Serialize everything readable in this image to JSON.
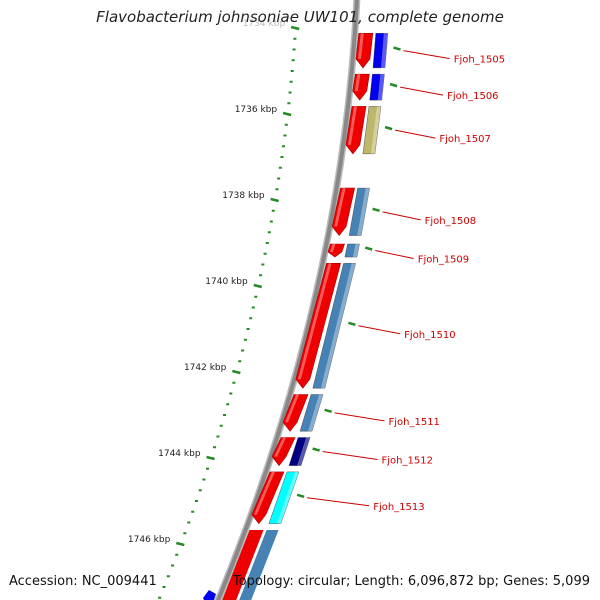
{
  "title": "Flavobacterium johnsoniae UW101, complete genome",
  "accession": "Accession: NC_009441",
  "topology": "Topology: circular; Length: 6,096,872 bp; Genes: 5,099",
  "ticks": [
    {
      "label": "1734 kbp",
      "kbp": 1734
    },
    {
      "label": "1736 kbp",
      "kbp": 1736
    },
    {
      "label": "1738 kbp",
      "kbp": 1738
    },
    {
      "label": "1740 kbp",
      "kbp": 1740
    },
    {
      "label": "1742 kbp",
      "kbp": 1742
    },
    {
      "label": "1744 kbp",
      "kbp": 1744
    },
    {
      "label": "1746 kbp",
      "kbp": 1746
    }
  ],
  "genes": [
    {
      "label": "Fjoh_1505",
      "start_kbp": 1734.1,
      "end_kbp": 1734.95,
      "color": "#0000ee"
    },
    {
      "label": "Fjoh_1506",
      "start_kbp": 1735.05,
      "end_kbp": 1735.7,
      "color": "#0000ee"
    },
    {
      "label": "Fjoh_1507",
      "start_kbp": 1735.8,
      "end_kbp": 1736.95,
      "color": "#bdb76b"
    },
    {
      "label": "Fjoh_1508",
      "start_kbp": 1737.7,
      "end_kbp": 1738.85,
      "color": "#4682b4"
    },
    {
      "label": "Fjoh_1509",
      "start_kbp": 1739.0,
      "end_kbp": 1739.35,
      "color": "#4682b4"
    },
    {
      "label": "Fjoh_1510",
      "start_kbp": 1739.45,
      "end_kbp": 1742.4,
      "color": "#4682b4"
    },
    {
      "label": "Fjoh_1511",
      "start_kbp": 1742.5,
      "end_kbp": 1743.4,
      "color": "#4682b4"
    },
    {
      "label": "Fjoh_1512",
      "start_kbp": 1743.5,
      "end_kbp": 1744.2,
      "color": "#000080"
    },
    {
      "label": "Fjoh_1513",
      "start_kbp": 1744.3,
      "end_kbp": 1745.55,
      "color": "#00ffff"
    }
  ],
  "colors": {
    "cds_forward": "#ee0000",
    "backbone": "#888888",
    "tick": "#228b22",
    "label": "#cc0000"
  }
}
